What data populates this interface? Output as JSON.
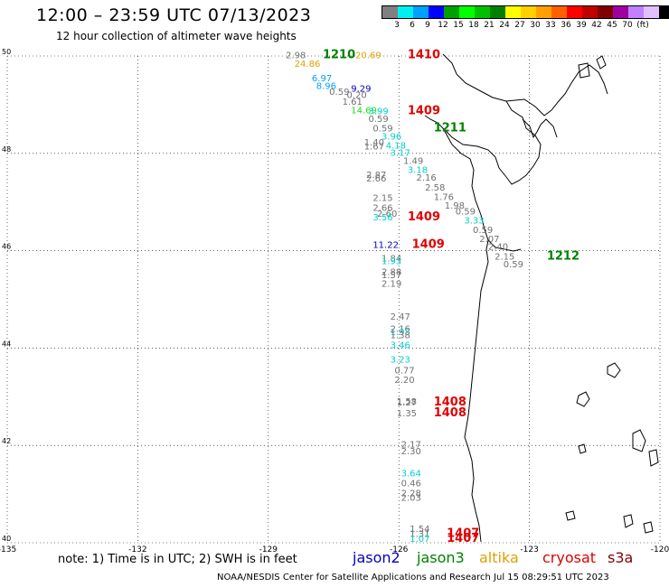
{
  "title": "12:00 – 23:59 UTC 07/13/2023",
  "subtitle": "12 hour collection of altimeter wave heights",
  "colorbar": {
    "colors": [
      "#808080",
      "#00f0f0",
      "#00a0ff",
      "#0000ff",
      "#00a000",
      "#00ff00",
      "#00c000",
      "#008000",
      "#ffff00",
      "#ffd000",
      "#ffa000",
      "#ff6000",
      "#ff0000",
      "#c00000",
      "#800000",
      "#a000a0",
      "#c080ff",
      "#e0c0ff",
      "#000000"
    ],
    "labels": [
      "3",
      "6",
      "9",
      "12",
      "15",
      "18",
      "21",
      "24",
      "27",
      "30",
      "33",
      "36",
      "39",
      "42",
      "45",
      "70",
      "(ft)"
    ]
  },
  "map": {
    "lon_range": [
      -135,
      -120
    ],
    "lat_range": [
      40,
      50
    ],
    "lon_ticks": [
      "-135",
      "-132",
      "-129",
      "-126",
      "-123",
      "-120"
    ],
    "lat_ticks": [
      "50",
      "48",
      "46",
      "44",
      "42",
      "40"
    ]
  },
  "measurements": [
    {
      "t": "2.98",
      "c": "#707070",
      "lon": -128.6,
      "lat": 49.95
    },
    {
      "t": "1210",
      "c": "#008000",
      "lon": -127.75,
      "lat": 49.95,
      "b": true
    },
    {
      "t": "20.69",
      "c": "#e0a000",
      "lon": -127.0,
      "lat": 49.95
    },
    {
      "t": "1410",
      "c": "#e00000",
      "lon": -125.8,
      "lat": 49.95,
      "b": true
    },
    {
      "t": "24.86",
      "c": "#e0a000",
      "lon": -128.4,
      "lat": 49.78
    },
    {
      "t": "6.97",
      "c": "#00a0ff",
      "lon": -128.0,
      "lat": 49.48
    },
    {
      "t": "8.96",
      "c": "#00a0ff",
      "lon": -127.9,
      "lat": 49.32
    },
    {
      "t": "9.29",
      "c": "#0000c0",
      "lon": -127.1,
      "lat": 49.27
    },
    {
      "t": "0.59",
      "c": "#707070",
      "lon": -127.6,
      "lat": 49.2
    },
    {
      "t": "0.20",
      "c": "#707070",
      "lon": -127.2,
      "lat": 49.14
    },
    {
      "t": "1.61",
      "c": "#707070",
      "lon": -127.3,
      "lat": 49.0
    },
    {
      "t": "14.69",
      "c": "#20e020",
      "lon": -127.1,
      "lat": 48.82
    },
    {
      "t": "3.99",
      "c": "#00d0d0",
      "lon": -126.7,
      "lat": 48.8
    },
    {
      "t": "1409",
      "c": "#e00000",
      "lon": -125.8,
      "lat": 48.8,
      "b": true
    },
    {
      "t": "0.59",
      "c": "#707070",
      "lon": -126.7,
      "lat": 48.65
    },
    {
      "t": "0.59",
      "c": "#707070",
      "lon": -126.6,
      "lat": 48.45
    },
    {
      "t": "1211",
      "c": "#008000",
      "lon": -125.2,
      "lat": 48.45,
      "b": true
    },
    {
      "t": "3.96",
      "c": "#00d0d0",
      "lon": -126.4,
      "lat": 48.28
    },
    {
      "t": "1.40",
      "c": "#707070",
      "lon": -126.8,
      "lat": 48.16
    },
    {
      "t": "1.67",
      "c": "#707070",
      "lon": -126.8,
      "lat": 48.08
    },
    {
      "t": "4.18",
      "c": "#00d0d0",
      "lon": -126.3,
      "lat": 48.1
    },
    {
      "t": "3.17",
      "c": "#00d0d0",
      "lon": -126.2,
      "lat": 47.95
    },
    {
      "t": "1.49",
      "c": "#707070",
      "lon": -125.9,
      "lat": 47.78
    },
    {
      "t": "3.18",
      "c": "#00d0d0",
      "lon": -125.8,
      "lat": 47.6
    },
    {
      "t": "2.87",
      "c": "#707070",
      "lon": -126.75,
      "lat": 47.5
    },
    {
      "t": "2.66",
      "c": "#707070",
      "lon": -126.75,
      "lat": 47.42
    },
    {
      "t": "2.16",
      "c": "#707070",
      "lon": -125.6,
      "lat": 47.44
    },
    {
      "t": "2.58",
      "c": "#707070",
      "lon": -125.4,
      "lat": 47.24
    },
    {
      "t": "1.76",
      "c": "#707070",
      "lon": -125.2,
      "lat": 47.04
    },
    {
      "t": "2.15",
      "c": "#707070",
      "lon": -126.6,
      "lat": 47.02
    },
    {
      "t": "1.98",
      "c": "#707070",
      "lon": -124.95,
      "lat": 46.86
    },
    {
      "t": "2.66",
      "c": "#707070",
      "lon": -126.6,
      "lat": 46.82
    },
    {
      "t": "2.60",
      "c": "#707070",
      "lon": -126.5,
      "lat": 46.7
    },
    {
      "t": "3.56",
      "c": "#00d0d0",
      "lon": -126.6,
      "lat": 46.62
    },
    {
      "t": "1409",
      "c": "#e00000",
      "lon": -125.8,
      "lat": 46.62,
      "b": true
    },
    {
      "t": "0.59",
      "c": "#707070",
      "lon": -124.7,
      "lat": 46.74
    },
    {
      "t": "3.33",
      "c": "#00d0d0",
      "lon": -124.5,
      "lat": 46.56
    },
    {
      "t": "0.59",
      "c": "#707070",
      "lon": -124.3,
      "lat": 46.36
    },
    {
      "t": "2.07",
      "c": "#707070",
      "lon": -124.15,
      "lat": 46.18
    },
    {
      "t": "2.40",
      "c": "#707070",
      "lon": -123.95,
      "lat": 46.02
    },
    {
      "t": "11.22",
      "c": "#0000c0",
      "lon": -126.6,
      "lat": 46.06
    },
    {
      "t": "1409",
      "c": "#e00000",
      "lon": -125.7,
      "lat": 46.06,
      "b": true
    },
    {
      "t": "2.15",
      "c": "#707070",
      "lon": -123.8,
      "lat": 45.82
    },
    {
      "t": "1212",
      "c": "#008000",
      "lon": -122.6,
      "lat": 45.82,
      "b": true
    },
    {
      "t": "0.59",
      "c": "#707070",
      "lon": -123.6,
      "lat": 45.66
    },
    {
      "t": "1.84",
      "c": "#707070",
      "lon": -126.4,
      "lat": 45.78
    },
    {
      "t": "1.93",
      "c": "#00d0d0",
      "lon": -126.4,
      "lat": 45.72
    },
    {
      "t": "2.88",
      "c": "#707070",
      "lon": -126.4,
      "lat": 45.5
    },
    {
      "t": "1.57",
      "c": "#707070",
      "lon": -126.4,
      "lat": 45.44
    },
    {
      "t": "2.19",
      "c": "#707070",
      "lon": -126.4,
      "lat": 45.26
    },
    {
      "t": "2.47",
      "c": "#707070",
      "lon": -126.2,
      "lat": 44.58
    },
    {
      "t": "2.16",
      "c": "#707070",
      "lon": -126.2,
      "lat": 44.33
    },
    {
      "t": "1.93",
      "c": "#00d0d0",
      "lon": -126.2,
      "lat": 44.27
    },
    {
      "t": "1.38",
      "c": "#707070",
      "lon": -126.2,
      "lat": 44.2
    },
    {
      "t": "3.46",
      "c": "#00d0d0",
      "lon": -126.2,
      "lat": 44.0
    },
    {
      "t": "3.23",
      "c": "#00d0d0",
      "lon": -126.2,
      "lat": 43.7
    },
    {
      "t": "0.77",
      "c": "#707070",
      "lon": -126.1,
      "lat": 43.48
    },
    {
      "t": "2.20",
      "c": "#707070",
      "lon": -126.1,
      "lat": 43.28
    },
    {
      "t": "1.58",
      "c": "#707070",
      "lon": -126.05,
      "lat": 42.84
    },
    {
      "t": "1.27",
      "c": "#707070",
      "lon": -126.05,
      "lat": 42.82
    },
    {
      "t": "1408",
      "c": "#e00000",
      "lon": -125.2,
      "lat": 42.82,
      "b": true
    },
    {
      "t": "1.35",
      "c": "#707070",
      "lon": -126.05,
      "lat": 42.6
    },
    {
      "t": "1408",
      "c": "#e00000",
      "lon": -125.2,
      "lat": 42.6,
      "b": true
    },
    {
      "t": "2.17",
      "c": "#707070",
      "lon": -125.95,
      "lat": 41.96
    },
    {
      "t": "2.30",
      "c": "#707070",
      "lon": -125.95,
      "lat": 41.82
    },
    {
      "t": "3.64",
      "c": "#00d0d0",
      "lon": -125.95,
      "lat": 41.36
    },
    {
      "t": "0.46",
      "c": "#707070",
      "lon": -125.95,
      "lat": 41.16
    },
    {
      "t": "2.28",
      "c": "#707070",
      "lon": -125.95,
      "lat": 40.96
    },
    {
      "t": "2.03",
      "c": "#707070",
      "lon": -125.95,
      "lat": 40.86
    },
    {
      "t": "1.54",
      "c": "#707070",
      "lon": -125.75,
      "lat": 40.22
    },
    {
      "t": "1.31",
      "c": "#707070",
      "lon": -125.75,
      "lat": 40.12
    },
    {
      "t": "1.07",
      "c": "#00d0d0",
      "lon": -125.75,
      "lat": 40.02
    },
    {
      "t": "1407",
      "c": "#e00000",
      "lon": -124.9,
      "lat": 40.12,
      "b": true
    },
    {
      "t": "1407",
      "c": "#e00000",
      "lon": -124.9,
      "lat": 40.02,
      "b": true
    }
  ],
  "footer": {
    "note": "note: 1) Time is in UTC; 2) SWH is in feet",
    "satellites": [
      {
        "name": "jason2",
        "color": "#0000c0"
      },
      {
        "name": "jason3",
        "color": "#008000"
      },
      {
        "name": "altika",
        "color": "#e0a000"
      },
      {
        "name": "cryosat",
        "color": "#e00000"
      },
      {
        "name": "s3a",
        "color": "#800000"
      }
    ],
    "credit": "NOAA/NESDIS Center for Satellite Applications and Research    Jul 15 08:29:51 UTC 2023"
  }
}
